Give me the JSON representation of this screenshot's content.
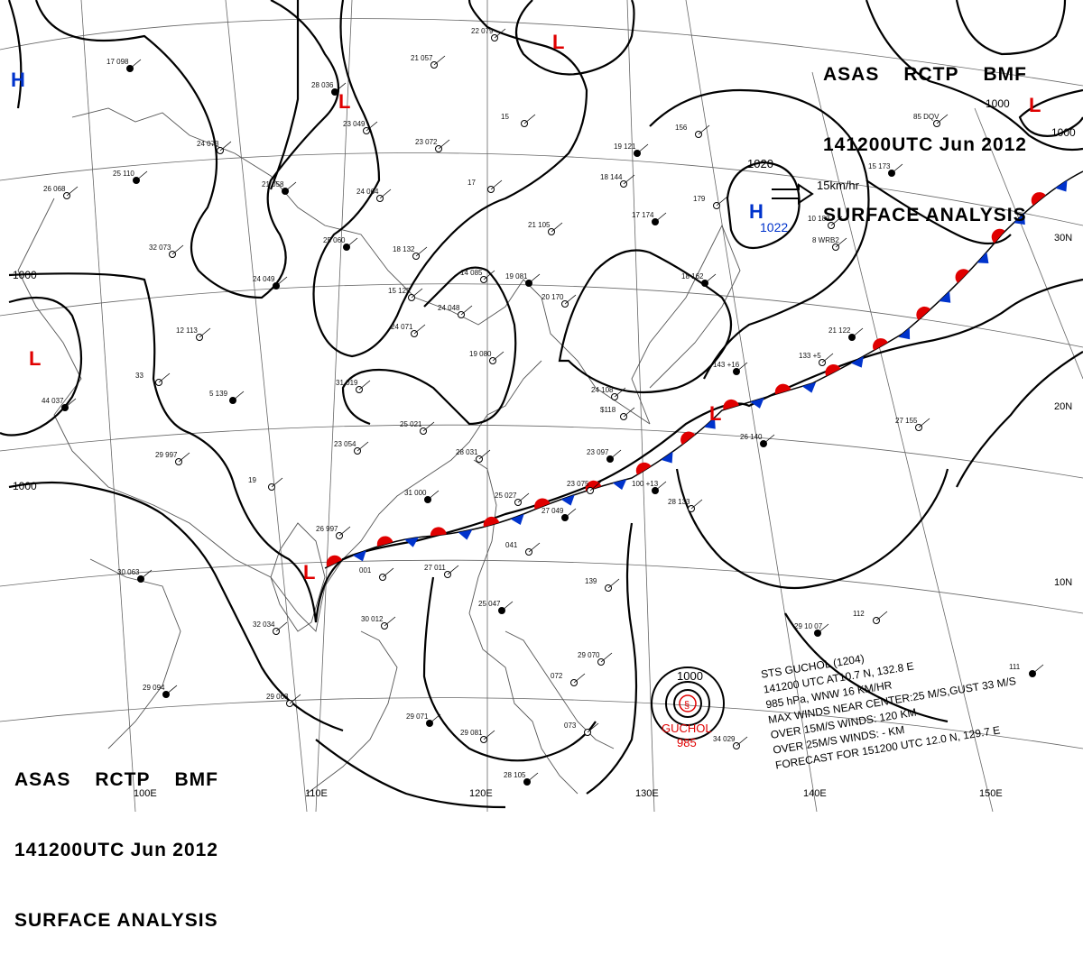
{
  "header_top_right": {
    "line1": [
      "ASAS",
      "RCTP",
      "BMF"
    ],
    "line2": [
      "141200UTC",
      "Jun",
      "2012"
    ],
    "line3": "SURFACE ANALYSIS"
  },
  "header_bottom_left": {
    "line1": [
      "ASAS",
      "RCTP",
      "BMF"
    ],
    "line2": [
      "141200UTC",
      "Jun",
      "2012"
    ],
    "line3": "SURFACE ANALYSIS"
  },
  "typhoon_info": {
    "line1": "STS  GUCHOL  (1204)",
    "line2": "141200 UTC  AT10.7 N, 132.8 E",
    "line3": "985 hPa, WNW  16 KM/HR",
    "line4": "MAX WINDS NEAR CENTER:25 M/S,GUST 33 M/S",
    "line5": "OVER 15M/S WINDS: 120 KM",
    "line6": "OVER 25M/S WINDS: - KM",
    "line7": "FORECAST FOR 151200 UTC 12.0 N, 129.7 E"
  },
  "typhoon_label": {
    "name": "GUCHOL",
    "pressure": "985",
    "isobar": "1000"
  },
  "high_center": {
    "symbol": "H",
    "pressure": "1022",
    "isobar": "1020",
    "motion": "15km/hr"
  },
  "symbols": {
    "low": "L",
    "high": "H"
  },
  "isobar_labels": [
    "1000",
    "1000",
    "1000",
    "1000"
  ],
  "lat_labels": [
    "30N",
    "20N",
    "10N"
  ],
  "lon_labels": [
    "100E",
    "110E",
    "120E",
    "130E",
    "140E",
    "150E"
  ],
  "colors": {
    "warm_front": "#e00000",
    "cold_front": "#0033cc",
    "isobar": "#000000",
    "grid": "#555555"
  },
  "stations": [
    [
      "17 098",
      118,
      64
    ],
    [
      "21 057",
      455,
      60
    ],
    [
      "22 079",
      522,
      30
    ],
    [
      "28 036",
      345,
      90
    ],
    [
      "23 049",
      380,
      133
    ],
    [
      "24 073",
      218,
      155
    ],
    [
      "25 110",
      125,
      188
    ],
    [
      "23 072",
      460,
      153
    ],
    [
      "15",
      555,
      125
    ],
    [
      "19 121",
      680,
      158
    ],
    [
      "18 144",
      665,
      192
    ],
    [
      "17",
      518,
      198
    ],
    [
      "21 058",
      290,
      200
    ],
    [
      "24 064",
      395,
      208
    ],
    [
      "26 068",
      48,
      205
    ],
    [
      "25 060",
      358,
      262
    ],
    [
      "18 132",
      435,
      272
    ],
    [
      "21 105",
      585,
      245
    ],
    [
      "17 174",
      700,
      234
    ],
    [
      "179",
      768,
      216
    ],
    [
      "32 073",
      165,
      270
    ],
    [
      "24 049",
      280,
      305
    ],
    [
      "15 125",
      430,
      318
    ],
    [
      "14 085",
      510,
      298
    ],
    [
      "19 081",
      560,
      302
    ],
    [
      "24 048",
      485,
      337
    ],
    [
      "20 170",
      600,
      325
    ],
    [
      "18 162",
      755,
      302
    ],
    [
      "24 071",
      433,
      358
    ],
    [
      "12 113",
      195,
      362
    ],
    [
      "21 122",
      918,
      362
    ],
    [
      "19 080",
      520,
      388
    ],
    [
      "33",
      150,
      412
    ],
    [
      "5 139",
      232,
      432
    ],
    [
      "31 019",
      372,
      420
    ],
    [
      "24 108",
      655,
      428
    ],
    [
      "44 037",
      46,
      440
    ],
    [
      "25 021",
      443,
      466
    ],
    [
      "27 155",
      992,
      462
    ],
    [
      "26 140",
      820,
      480
    ],
    [
      "23 054",
      370,
      488
    ],
    [
      "28 031",
      505,
      497
    ],
    [
      "23 097",
      650,
      497
    ],
    [
      "29 997",
      172,
      500
    ],
    [
      "19",
      275,
      528
    ],
    [
      "31 000",
      448,
      542
    ],
    [
      "25 027",
      548,
      545
    ],
    [
      "23 075",
      628,
      532
    ],
    [
      "100 +13",
      700,
      532
    ],
    [
      "28 133",
      740,
      552
    ],
    [
      "26 997",
      350,
      582
    ],
    [
      "27 049",
      600,
      562
    ],
    [
      "041",
      560,
      600
    ],
    [
      "27 011",
      470,
      625
    ],
    [
      "30 063",
      130,
      630
    ],
    [
      "001",
      398,
      628
    ],
    [
      "139",
      648,
      640
    ],
    [
      "25 047",
      530,
      665
    ],
    [
      "30 012",
      400,
      682
    ],
    [
      "32 034",
      280,
      688
    ],
    [
      "29 10 07",
      880,
      690
    ],
    [
      "112",
      945,
      676
    ],
    [
      "29 070",
      640,
      722
    ],
    [
      "29 094",
      158,
      758
    ],
    [
      "29 063",
      295,
      768
    ],
    [
      "072",
      610,
      745
    ],
    [
      "29 071",
      450,
      790
    ],
    [
      "29 081",
      510,
      808
    ],
    [
      "073",
      625,
      800
    ],
    [
      "28 105",
      558,
      855
    ],
    [
      "34 029",
      790,
      815
    ],
    [
      "85 DQV",
      1012,
      125
    ],
    [
      "15 173",
      962,
      180
    ],
    [
      "10 183",
      895,
      238
    ],
    [
      "8 WRB2",
      900,
      262
    ],
    [
      "143 +16",
      790,
      400
    ],
    [
      "156",
      748,
      137
    ],
    [
      "$118",
      665,
      450
    ],
    [
      "111",
      1118,
      735
    ],
    [
      "133 +5",
      885,
      390
    ]
  ]
}
